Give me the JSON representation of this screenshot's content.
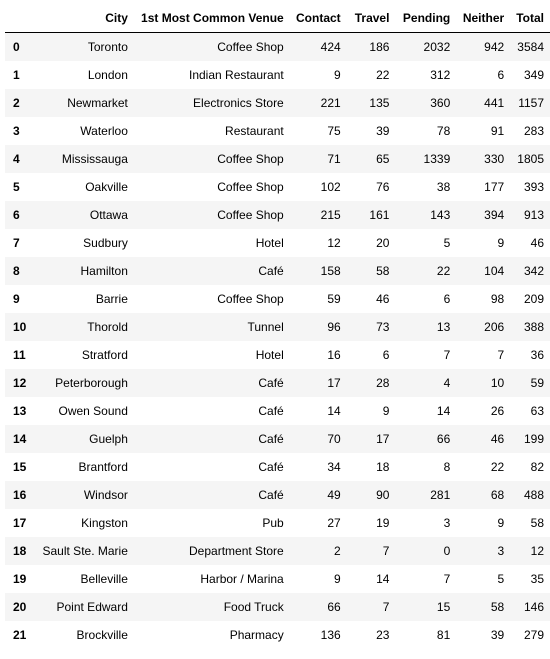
{
  "table": {
    "columns": [
      "",
      "City",
      "1st Most Common Venue",
      "Contact",
      "Travel",
      "Pending",
      "Neither",
      "Total"
    ],
    "rows": [
      [
        "0",
        "Toronto",
        "Coffee Shop",
        "424",
        "186",
        "2032",
        "942",
        "3584"
      ],
      [
        "1",
        "London",
        "Indian Restaurant",
        "9",
        "22",
        "312",
        "6",
        "349"
      ],
      [
        "2",
        "Newmarket",
        "Electronics Store",
        "221",
        "135",
        "360",
        "441",
        "1157"
      ],
      [
        "3",
        "Waterloo",
        "Restaurant",
        "75",
        "39",
        "78",
        "91",
        "283"
      ],
      [
        "4",
        "Mississauga",
        "Coffee Shop",
        "71",
        "65",
        "1339",
        "330",
        "1805"
      ],
      [
        "5",
        "Oakville",
        "Coffee Shop",
        "102",
        "76",
        "38",
        "177",
        "393"
      ],
      [
        "6",
        "Ottawa",
        "Coffee Shop",
        "215",
        "161",
        "143",
        "394",
        "913"
      ],
      [
        "7",
        "Sudbury",
        "Hotel",
        "12",
        "20",
        "5",
        "9",
        "46"
      ],
      [
        "8",
        "Hamilton",
        "Café",
        "158",
        "58",
        "22",
        "104",
        "342"
      ],
      [
        "9",
        "Barrie",
        "Coffee Shop",
        "59",
        "46",
        "6",
        "98",
        "209"
      ],
      [
        "10",
        "Thorold",
        "Tunnel",
        "96",
        "73",
        "13",
        "206",
        "388"
      ],
      [
        "11",
        "Stratford",
        "Hotel",
        "16",
        "6",
        "7",
        "7",
        "36"
      ],
      [
        "12",
        "Peterborough",
        "Café",
        "17",
        "28",
        "4",
        "10",
        "59"
      ],
      [
        "13",
        "Owen Sound",
        "Café",
        "14",
        "9",
        "14",
        "26",
        "63"
      ],
      [
        "14",
        "Guelph",
        "Café",
        "70",
        "17",
        "66",
        "46",
        "199"
      ],
      [
        "15",
        "Brantford",
        "Café",
        "34",
        "18",
        "8",
        "22",
        "82"
      ],
      [
        "16",
        "Windsor",
        "Café",
        "49",
        "90",
        "281",
        "68",
        "488"
      ],
      [
        "17",
        "Kingston",
        "Pub",
        "27",
        "19",
        "3",
        "9",
        "58"
      ],
      [
        "18",
        "Sault Ste. Marie",
        "Department Store",
        "2",
        "7",
        "0",
        "3",
        "12"
      ],
      [
        "19",
        "Belleville",
        "Harbor / Marina",
        "9",
        "14",
        "7",
        "5",
        "35"
      ],
      [
        "20",
        "Point Edward",
        "Food Truck",
        "66",
        "7",
        "15",
        "58",
        "146"
      ],
      [
        "21",
        "Brockville",
        "Pharmacy",
        "136",
        "23",
        "81",
        "39",
        "279"
      ]
    ]
  }
}
